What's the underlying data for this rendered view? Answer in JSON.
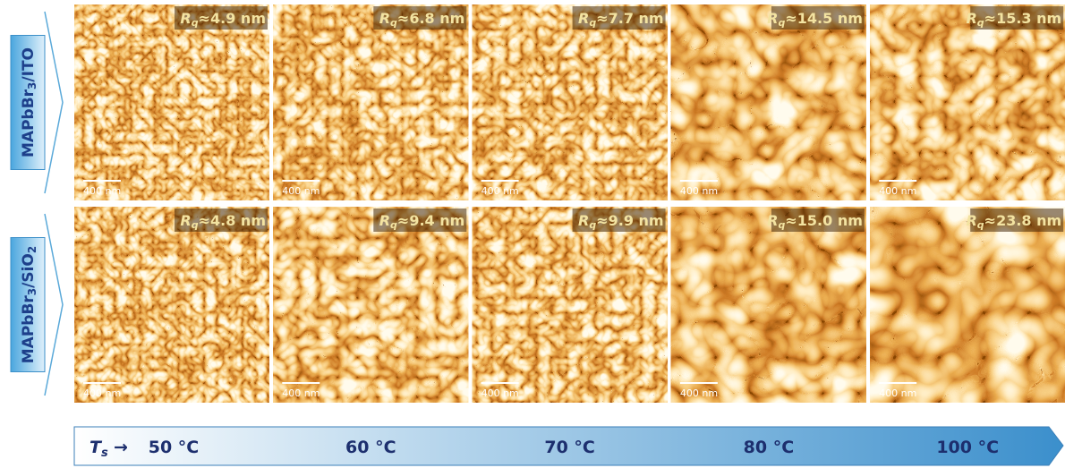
{
  "rows": [
    {
      "label": [
        "MAPbBr",
        "3",
        "/ITO"
      ],
      "roughness": [
        "≈4.9 nm",
        "≈6.8 nm",
        "≈7.7 nm",
        "≈14.5 nm",
        "≈15.3 nm"
      ]
    },
    {
      "label": [
        "MAPbBr",
        "3",
        "/SiO",
        "2"
      ],
      "roughness": [
        "≈4.8 nm",
        "≈9.4 nm",
        "≈9.9 nm",
        "≈15.0 nm",
        "≈23.8 nm"
      ]
    }
  ],
  "roughness_symbol": [
    "R",
    "q"
  ],
  "scale_bar": "400 nm",
  "temperature_axis": {
    "symbol": [
      "T",
      "s"
    ],
    "arrow": "→",
    "temperatures": [
      "50 °C",
      "60 °C",
      "70 °C",
      "80 °C",
      "100 °C"
    ]
  }
}
